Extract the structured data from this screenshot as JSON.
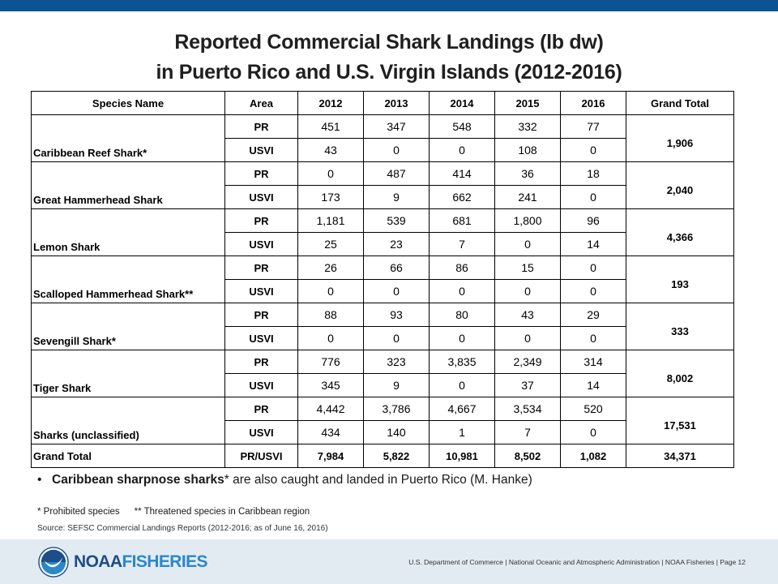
{
  "title": {
    "line1": "Reported Commercial Shark Landings (lb dw)",
    "line2": "in Puerto Rico and U.S. Virgin Islands (2012-2016)"
  },
  "table": {
    "headers": [
      "Species Name",
      "Area",
      "2012",
      "2013",
      "2014",
      "2015",
      "2016",
      "Grand Total"
    ],
    "rows": [
      {
        "species": "Caribbean Reef Shark*",
        "total": "1,906",
        "areas": [
          {
            "area": "PR",
            "values": [
              "451",
              "347",
              "548",
              "332",
              "77"
            ]
          },
          {
            "area": "USVI",
            "values": [
              "43",
              "0",
              "0",
              "108",
              "0"
            ]
          }
        ]
      },
      {
        "species": "Great Hammerhead Shark",
        "total": "2,040",
        "areas": [
          {
            "area": "PR",
            "values": [
              "0",
              "487",
              "414",
              "36",
              "18"
            ]
          },
          {
            "area": "USVI",
            "values": [
              "173",
              "9",
              "662",
              "241",
              "0"
            ]
          }
        ]
      },
      {
        "species": "Lemon Shark",
        "total": "4,366",
        "areas": [
          {
            "area": "PR",
            "values": [
              "1,181",
              "539",
              "681",
              "1,800",
              "96"
            ]
          },
          {
            "area": "USVI",
            "values": [
              "25",
              "23",
              "7",
              "0",
              "14"
            ]
          }
        ]
      },
      {
        "species": "Scalloped Hammerhead Shark**",
        "total": "193",
        "areas": [
          {
            "area": "PR",
            "values": [
              "26",
              "66",
              "86",
              "15",
              "0"
            ]
          },
          {
            "area": "USVI",
            "values": [
              "0",
              "0",
              "0",
              "0",
              "0"
            ]
          }
        ]
      },
      {
        "species": "Sevengill Shark*",
        "total": "333",
        "areas": [
          {
            "area": "PR",
            "values": [
              "88",
              "93",
              "80",
              "43",
              "29"
            ]
          },
          {
            "area": "USVI",
            "values": [
              "0",
              "0",
              "0",
              "0",
              "0"
            ]
          }
        ]
      },
      {
        "species": "Tiger Shark",
        "total": "8,002",
        "areas": [
          {
            "area": "PR",
            "values": [
              "776",
              "323",
              "3,835",
              "2,349",
              "314"
            ]
          },
          {
            "area": "USVI",
            "values": [
              "345",
              "9",
              "0",
              "37",
              "14"
            ]
          }
        ]
      },
      {
        "species": "Sharks (unclassified)",
        "total": "17,531",
        "areas": [
          {
            "area": "PR",
            "values": [
              "4,442",
              "3,786",
              "4,667",
              "3,534",
              "520"
            ]
          },
          {
            "area": "USVI",
            "values": [
              "434",
              "140",
              "1",
              "7",
              "0"
            ]
          }
        ]
      }
    ],
    "grand_total": {
      "label": "Grand Total",
      "area": "PR/USVI",
      "values": [
        "7,984",
        "5,822",
        "10,981",
        "8,502",
        "1,082"
      ],
      "total": "34,371"
    }
  },
  "bullet": {
    "symbol": "•",
    "bold": "Caribbean sharpnose sharks",
    "rest": "* are also caught and landed in Puerto Rico (M. Hanke)"
  },
  "notes": {
    "prohibited": "* Prohibited species",
    "threatened": "** Threatened species in Caribbean region"
  },
  "source": "Source: SEFSC Commercial Landings Reports (2012-2016; as of June 16, 2016)",
  "footer": {
    "brand_noaa": "NOAA",
    "brand_fisheries": "FISHERIES",
    "text": "U.S. Department of Commerce | National Oceanic and Atmospheric Administration | NOAA Fisheries | Page 12"
  },
  "colors": {
    "top_bar": "#0b5394",
    "footer_bg": "#e3ebf2",
    "brand_dark": "#1b4e8a",
    "brand_light": "#2a88c8"
  }
}
